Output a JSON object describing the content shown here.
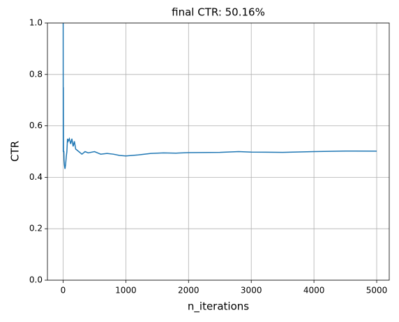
{
  "chart_data": {
    "type": "line",
    "title": "final CTR: 50.16%",
    "x_label": "n_iterations",
    "y_label": "CTR",
    "x": [
      1,
      2,
      3,
      4,
      5,
      6,
      8,
      10,
      12,
      15,
      20,
      25,
      30,
      40,
      50,
      60,
      70,
      80,
      100,
      120,
      140,
      160,
      180,
      200,
      250,
      300,
      350,
      400,
      500,
      600,
      700,
      800,
      900,
      1000,
      1200,
      1400,
      1600,
      1800,
      2000,
      2500,
      2800,
      3000,
      3500,
      4000,
      4500,
      5000
    ],
    "values": [
      1.0,
      0.5,
      0.667,
      0.75,
      0.6,
      0.5,
      0.5,
      0.5,
      0.5,
      0.467,
      0.45,
      0.44,
      0.433,
      0.45,
      0.48,
      0.5,
      0.55,
      0.54,
      0.55,
      0.53,
      0.55,
      0.52,
      0.54,
      0.51,
      0.5,
      0.49,
      0.5,
      0.495,
      0.5,
      0.49,
      0.493,
      0.49,
      0.485,
      0.483,
      0.487,
      0.493,
      0.495,
      0.494,
      0.496,
      0.497,
      0.5,
      0.498,
      0.497,
      0.5,
      0.502,
      0.5016
    ],
    "color": "#1f77b4",
    "xlim": [
      -250,
      5200
    ],
    "xticks": [
      0,
      1000,
      2000,
      3000,
      4000,
      5000
    ],
    "ylim": [
      0,
      1
    ],
    "yticks": [
      {
        "value": 0,
        "label": "0.0"
      },
      {
        "value": 0.2,
        "label": "0.2"
      },
      {
        "value": 0.4,
        "label": "0.4"
      },
      {
        "value": 0.6,
        "label": "0.6"
      },
      {
        "value": 0.8,
        "label": "0.8"
      },
      {
        "value": 1,
        "label": "1.0"
      }
    ],
    "grid": true
  }
}
